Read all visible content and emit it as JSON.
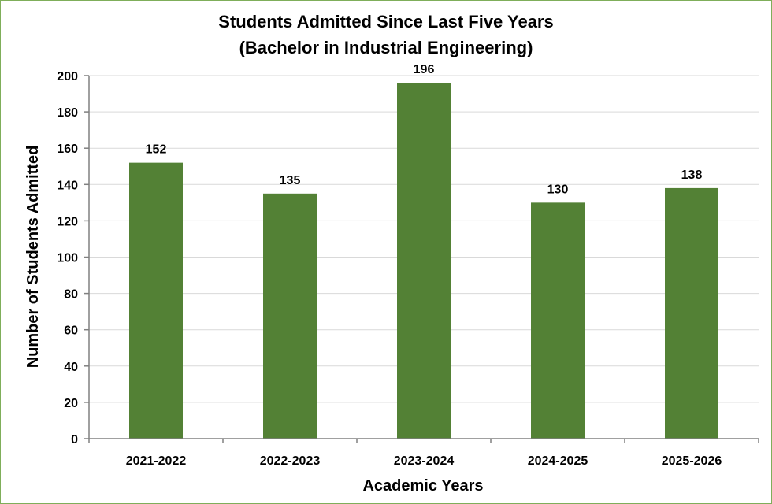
{
  "chart_data": {
    "type": "bar",
    "title": "Students Admitted  Since Last Five Years",
    "subtitle": "(Bachelor in Industrial Engineering)",
    "xlabel": "Academic Years",
    "ylabel": "Number of Students Admitted",
    "categories": [
      "2021-2022",
      "2022-2023",
      "2023-2024",
      "2024-2025",
      "2025-2026"
    ],
    "values": [
      152,
      135,
      196,
      130,
      138
    ],
    "data_labels": [
      "152",
      "135",
      "196",
      "130",
      "138"
    ],
    "ylim": [
      0,
      200
    ],
    "yticks": [
      0,
      20,
      40,
      60,
      80,
      100,
      120,
      140,
      160,
      180,
      200
    ],
    "grid": true,
    "legend": "none",
    "bar_color": "#538135",
    "grid_color": "#d9d9d9",
    "axis_color": "#808080"
  }
}
